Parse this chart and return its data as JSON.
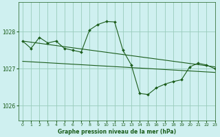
{
  "title": "Graphe pression niveau de la mer (hPa)",
  "background_color": "#cff0f0",
  "grid_color": "#99ccbb",
  "line_color": "#1a5c1a",
  "xlim": [
    -0.5,
    23
  ],
  "ylim": [
    1025.6,
    1028.8
  ],
  "yticks": [
    1026,
    1027,
    1028
  ],
  "xticks": [
    0,
    1,
    2,
    3,
    4,
    5,
    6,
    7,
    8,
    9,
    10,
    11,
    12,
    13,
    14,
    15,
    16,
    17,
    18,
    19,
    20,
    21,
    22,
    23
  ],
  "trend1_x": [
    0,
    23
  ],
  "trend1_y": [
    1027.75,
    1027.05
  ],
  "trend2_x": [
    0,
    23
  ],
  "trend2_y": [
    1027.2,
    1026.9
  ],
  "jagged_x": [
    0,
    1,
    2,
    3,
    4,
    5,
    6,
    7,
    8,
    9,
    10,
    11,
    12,
    13,
    14,
    15,
    16,
    17,
    18,
    19,
    20,
    21,
    22,
    23
  ],
  "jagged_y": [
    1027.75,
    1027.55,
    1027.85,
    1027.7,
    1027.75,
    1027.55,
    1027.5,
    1027.45,
    1028.05,
    1028.2,
    1028.28,
    1028.27,
    1027.5,
    1027.1,
    1026.33,
    1026.3,
    1026.48,
    1026.58,
    1026.65,
    1026.7,
    1027.05,
    1027.15,
    1027.1,
    1027.0
  ]
}
